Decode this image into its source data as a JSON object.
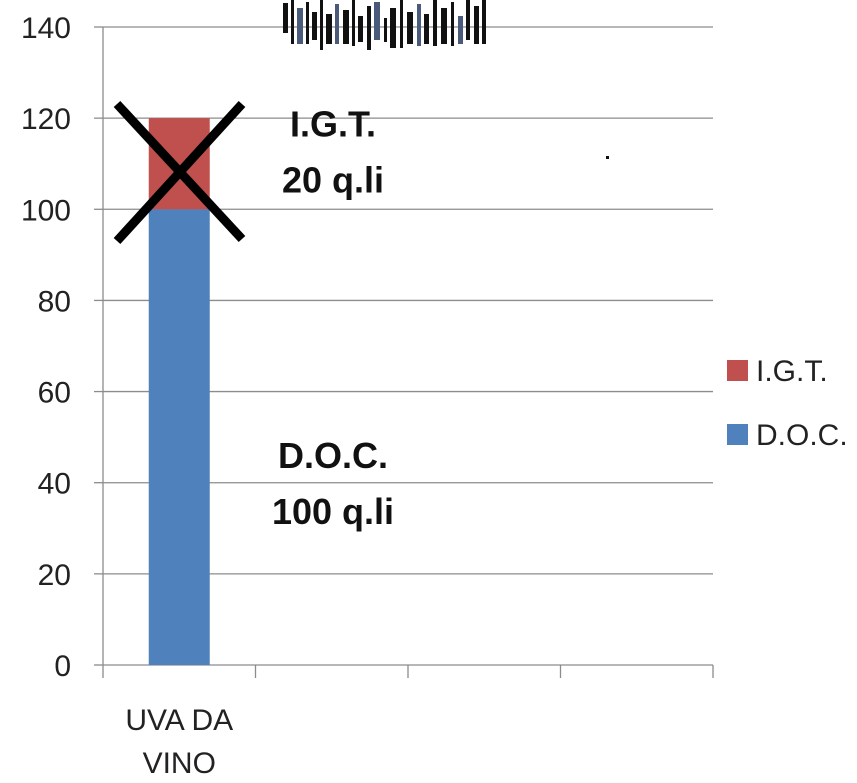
{
  "chart_data": {
    "type": "bar",
    "stacked": true,
    "categories": [
      "UVA DA VINO",
      "",
      "",
      ""
    ],
    "category_lines": [
      [
        "UVA DA",
        "VINO"
      ],
      [],
      [],
      []
    ],
    "series": [
      {
        "name": "D.O.C.",
        "values": [
          100,
          null,
          null,
          null
        ],
        "color": "#4F81BD"
      },
      {
        "name": "I.G.T.",
        "values": [
          20,
          null,
          null,
          null
        ],
        "color": "#C0504D"
      }
    ],
    "ylim": [
      0,
      140
    ],
    "y_ticks": [
      0,
      20,
      40,
      60,
      80,
      100,
      120,
      140
    ],
    "grid": true,
    "legend": {
      "position": "right",
      "entries": [
        {
          "name": "I.G.T.",
          "color": "#C0504D"
        },
        {
          "name": "D.O.C.",
          "color": "#4F81BD"
        }
      ]
    },
    "annotations": [
      {
        "series": "I.G.T.",
        "lines": [
          "I.G.T.",
          "20 q.li"
        ]
      },
      {
        "series": "D.O.C.",
        "lines": [
          "D.O.C.",
          "100 q.li"
        ]
      }
    ],
    "crossed_out_series": "I.G.T.",
    "title": "",
    "xlabel": "",
    "ylabel": ""
  }
}
